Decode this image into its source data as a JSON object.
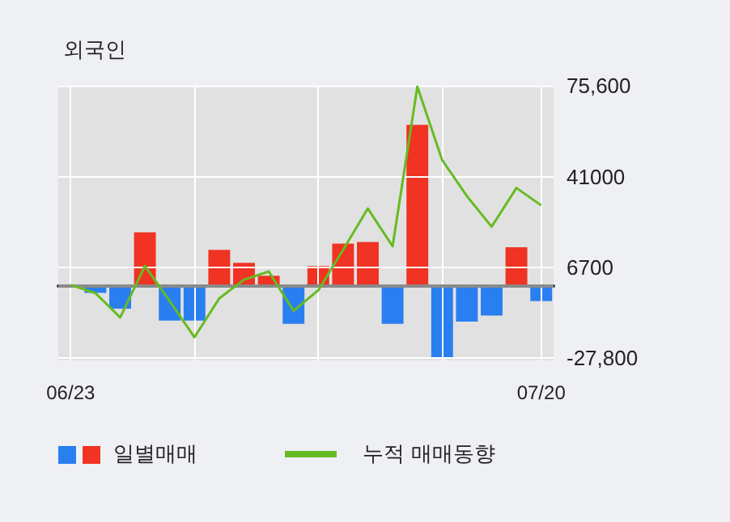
{
  "chart_data": {
    "type": "bar",
    "title": "외국인",
    "categories": [
      "06/23",
      null,
      null,
      null,
      null,
      null,
      null,
      null,
      null,
      null,
      null,
      null,
      null,
      null,
      null,
      null,
      null,
      null,
      null,
      "07/20"
    ],
    "series": [
      {
        "name": "일별매매",
        "colors": [
          null,
          "#2a7ff0",
          "#2a7ff0",
          "#f03322",
          "#2a7ff0",
          "#2a7ff0",
          "#f03322",
          "#f03322",
          "#f03322",
          "#2a7ff0",
          "#f03322",
          "#f03322",
          "#f03322",
          "#2a7ff0",
          "#f03322",
          "#2a7ff0",
          "#2a7ff0",
          "#2a7ff0",
          "#f03322",
          "#2a7ff0"
        ],
        "values": [
          null,
          -3000,
          -9000,
          20000,
          -13500,
          -13500,
          13300,
          8400,
          3500,
          -14700,
          7200,
          15700,
          16300,
          -14700,
          60700,
          -27600,
          -13900,
          -11600,
          14300,
          -6100
        ]
      },
      {
        "name": "누적 매매동향",
        "type": "line",
        "color": "#66bb22",
        "values": [
          0,
          -3100,
          -12300,
          7200,
          -6100,
          -19800,
          -5100,
          2000,
          5100,
          -9800,
          -2000,
          13300,
          29000,
          14700,
          75200,
          47400,
          33700,
          22100,
          36800,
          30200
        ]
      }
    ],
    "ylim": [
      -28600,
      75600
    ],
    "yticks": [
      {
        "value": 75600,
        "label": "75,600"
      },
      41000,
      6700,
      {
        "value": -27800,
        "label": "-27,800"
      }
    ],
    "grid": true,
    "legend": "bottom",
    "marker": "none"
  }
}
